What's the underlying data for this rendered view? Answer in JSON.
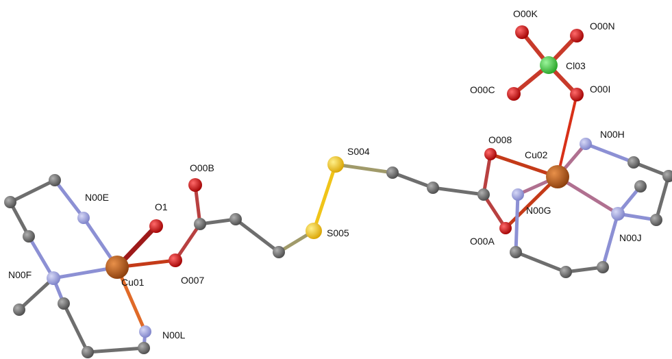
{
  "atoms": {
    "O00K": "O00K",
    "O00N": "O00N",
    "Cl03": "Cl03",
    "O00C": "O00C",
    "O00I": "O00I",
    "O008": "O008",
    "Cu02": "Cu02",
    "N00H": "N00H",
    "S004": "S004",
    "O00B": "O00B",
    "N00E": "N00E",
    "O1": "O1",
    "N00G": "N00G",
    "S005": "S005",
    "O00A": "O00A",
    "N00J": "N00J",
    "N00F": "N00F",
    "Cu01": "Cu01",
    "O007": "O007",
    "N00L": "N00L"
  },
  "colors": {
    "carbon": "#6b6b6b",
    "copper": "#b85a1c",
    "oxygen": "#d40000",
    "nitrogen": "#9a9ee0",
    "sulfur": "#f0c419",
    "chlorine": "#3fcf3f"
  }
}
